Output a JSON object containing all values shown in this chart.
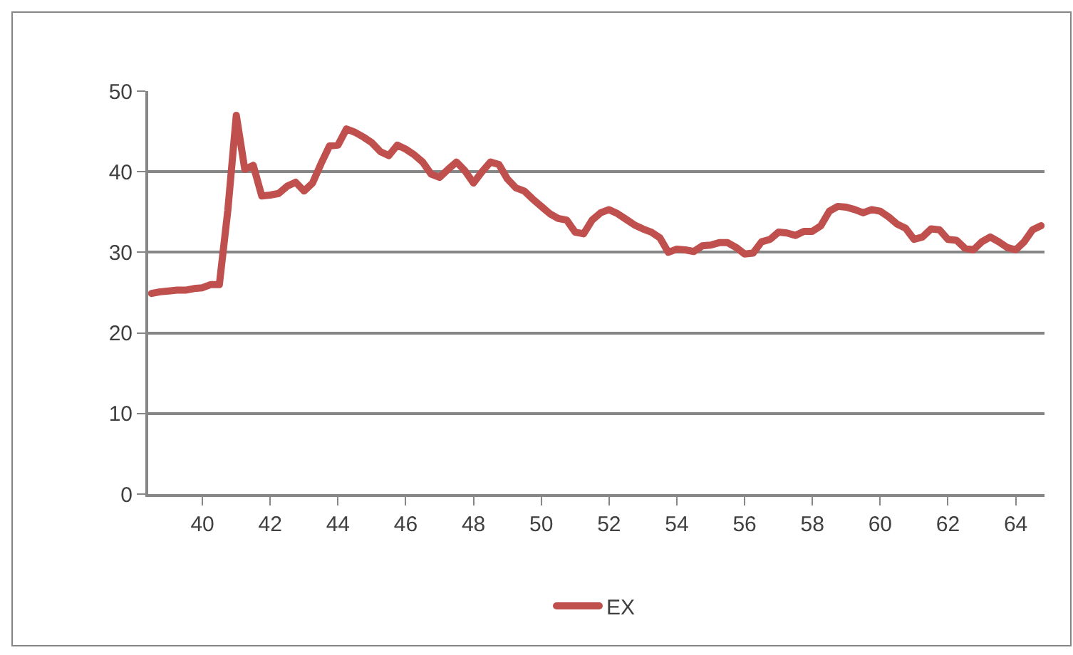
{
  "chart_data": {
    "type": "line",
    "x": [
      38.5,
      38.75,
      39,
      39.25,
      39.5,
      39.75,
      40,
      40.25,
      40.5,
      40.75,
      41,
      41.25,
      41.5,
      41.75,
      42,
      42.25,
      42.5,
      42.75,
      43,
      43.25,
      43.5,
      43.75,
      44,
      44.25,
      44.5,
      44.75,
      45,
      45.25,
      45.5,
      45.75,
      46,
      46.25,
      46.5,
      46.75,
      47,
      47.25,
      47.5,
      47.75,
      48,
      48.25,
      48.5,
      48.75,
      49,
      49.25,
      49.5,
      49.75,
      50,
      50.25,
      50.5,
      50.75,
      51,
      51.25,
      51.5,
      51.75,
      52,
      52.25,
      52.5,
      52.75,
      53,
      53.25,
      53.5,
      53.75,
      54,
      54.25,
      54.5,
      54.75,
      55,
      55.25,
      55.5,
      55.75,
      56,
      56.25,
      56.5,
      56.75,
      57,
      57.25,
      57.5,
      57.75,
      58,
      58.25,
      58.5,
      58.75,
      59,
      59.25,
      59.5,
      59.75,
      60,
      60.25,
      60.5,
      60.75,
      61,
      61.25,
      61.5,
      61.75,
      62,
      62.25,
      62.5,
      62.75,
      63,
      63.25,
      63.5,
      63.75,
      64,
      64.25,
      64.5,
      64.75
    ],
    "series": [
      {
        "name": "EX",
        "color": "#c0504d",
        "values": [
          24.9,
          25.1,
          25.2,
          25.3,
          25.3,
          25.5,
          25.6,
          26.0,
          26.0,
          35.2,
          47.0,
          40.3,
          40.8,
          37.0,
          37.1,
          37.3,
          38.2,
          38.7,
          37.6,
          38.6,
          41.0,
          43.2,
          43.3,
          45.3,
          44.9,
          44.3,
          43.6,
          42.5,
          42.0,
          43.3,
          42.8,
          42.1,
          41.2,
          39.7,
          39.3,
          40.3,
          41.2,
          40.1,
          38.6,
          40.0,
          41.2,
          40.9,
          39.1,
          38.0,
          37.6,
          36.6,
          35.7,
          34.8,
          34.2,
          34.0,
          32.5,
          32.3,
          34.0,
          34.9,
          35.3,
          34.8,
          34.1,
          33.4,
          32.9,
          32.5,
          31.8,
          30.0,
          30.4,
          30.3,
          30.1,
          30.8,
          30.9,
          31.2,
          31.2,
          30.6,
          29.8,
          29.9,
          31.3,
          31.6,
          32.5,
          32.4,
          32.1,
          32.6,
          32.6,
          33.3,
          35.1,
          35.7,
          35.6,
          35.3,
          34.9,
          35.3,
          35.1,
          34.4,
          33.5,
          33.0,
          31.6,
          31.9,
          32.9,
          32.8,
          31.6,
          31.5,
          30.5,
          30.3,
          31.3,
          31.9,
          31.3,
          30.6,
          30.3,
          31.3,
          32.8,
          33.3
        ]
      }
    ],
    "xlim": [
      38.4,
      64.85
    ],
    "xticks": [
      40,
      42,
      44,
      46,
      48,
      50,
      52,
      54,
      56,
      58,
      60,
      62,
      64
    ],
    "ylim": [
      0,
      50
    ],
    "yticks": [
      0,
      10,
      20,
      30,
      40,
      50
    ],
    "grid": "y",
    "legend": "bottom",
    "marker": "none",
    "line_style": "solid"
  }
}
